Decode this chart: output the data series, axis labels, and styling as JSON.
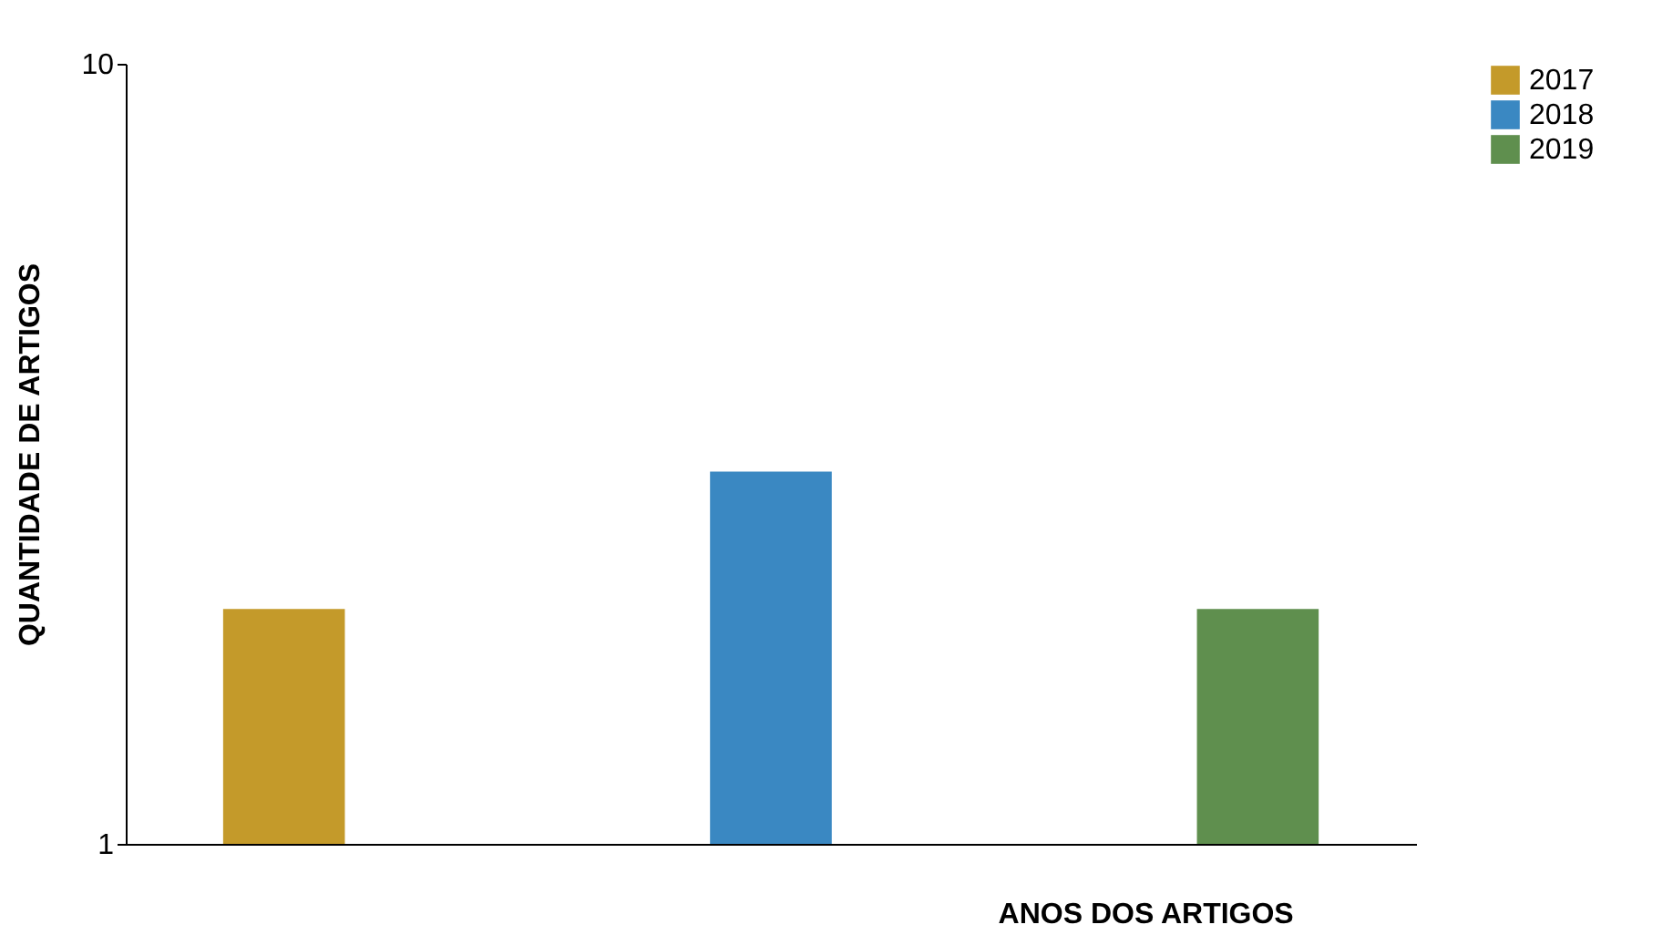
{
  "chart_data": {
    "type": "bar",
    "xlabel": "ANOS DOS ARTIGOS",
    "ylabel": "QUANTIDADE DE ARTIGOS",
    "categories": [
      null,
      null,
      null
    ],
    "series": [
      {
        "name": "2017",
        "color": "#c49a2a",
        "values": [
          2,
          null,
          null
        ]
      },
      {
        "name": "2018",
        "color": "#3a88c2",
        "values": [
          null,
          3,
          null
        ]
      },
      {
        "name": "2019",
        "color": "#5f8f4e",
        "values": [
          null,
          null,
          2
        ]
      }
    ],
    "log": "y",
    "ylim": [
      1,
      10
    ],
    "yticks": [
      1,
      10
    ],
    "grid": false,
    "legend": "right",
    "tick_labels": "y"
  }
}
